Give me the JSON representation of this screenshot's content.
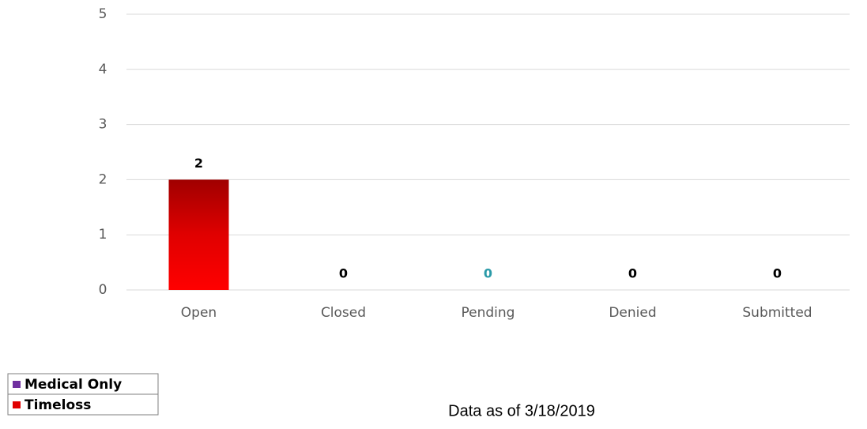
{
  "chart_data": {
    "type": "bar",
    "categories": [
      "Open",
      "Closed",
      "Pending",
      "Denied",
      "Submitted"
    ],
    "values": [
      2,
      0,
      0,
      0,
      0
    ],
    "color": "#ff0000",
    "value_label_colors": [
      "#000000",
      "#000000",
      "#2a9aa8",
      "#000000",
      "#000000"
    ],
    "ylim": [
      0,
      5
    ],
    "yticks": [
      0,
      1,
      2,
      3,
      4,
      5
    ],
    "grid": true,
    "legend": [
      {
        "name": "Medical Only",
        "color": "#7030a0"
      },
      {
        "name": "Timeloss",
        "color": "#e00000"
      }
    ],
    "note": "Data as of 3/18/2019"
  }
}
